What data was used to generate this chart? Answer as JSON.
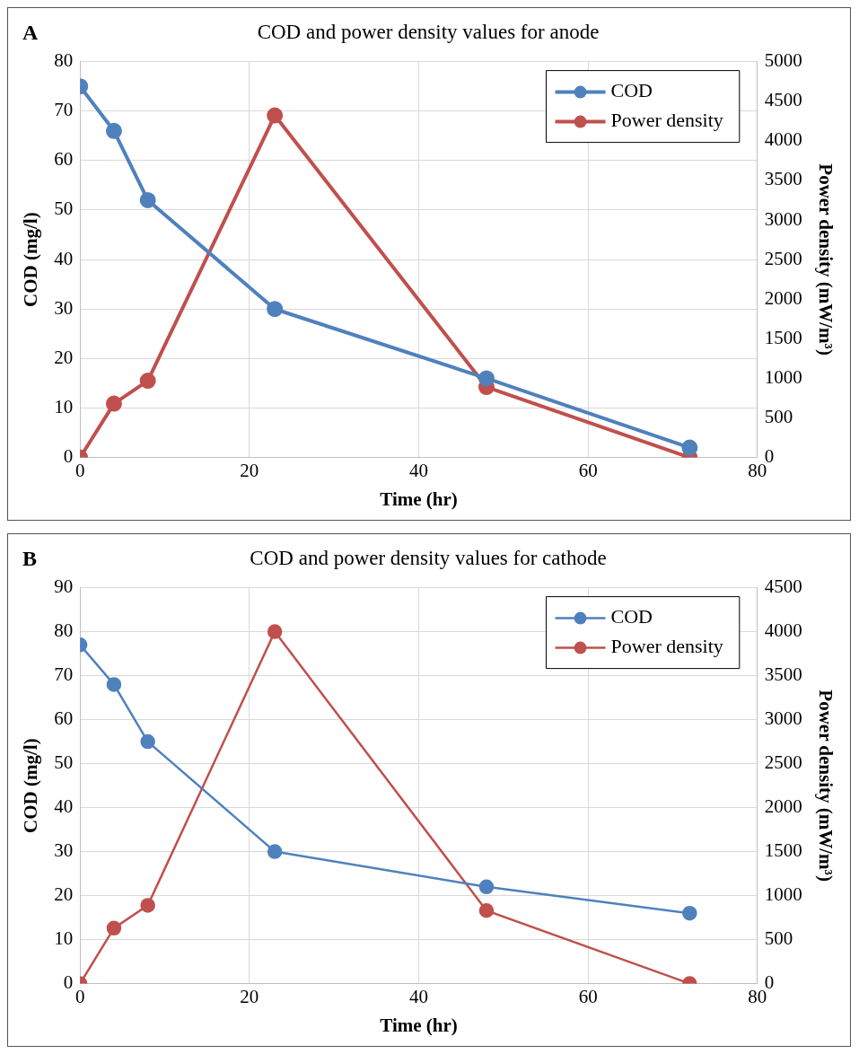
{
  "chart_data": [
    {
      "type": "line",
      "title": "COD and power density values for anode",
      "annotations": [
        "A"
      ],
      "xlabel": "Time (hr)",
      "ylabel": "COD (mg/l)",
      "y2label": "Power density (mW/m³)",
      "x": [
        0,
        4,
        8,
        23,
        48,
        72
      ],
      "xlim": [
        0,
        80
      ],
      "xticks": [
        0,
        20,
        40,
        60,
        80
      ],
      "ylim": [
        0,
        80
      ],
      "yticks": [
        0,
        10,
        20,
        30,
        40,
        50,
        60,
        70,
        80
      ],
      "y2lim": [
        0,
        5000
      ],
      "y2ticks": [
        0,
        500,
        1000,
        1500,
        2000,
        2500,
        3000,
        3500,
        4000,
        4500,
        5000
      ],
      "grid": true,
      "legend": "top right",
      "marker": "circle",
      "series": [
        {
          "name": "COD",
          "color": "#4f81bd",
          "values": [
            75,
            66,
            52,
            30,
            16,
            2
          ]
        },
        {
          "name": "Power density",
          "color": "#c0504d",
          "axis": "y2",
          "values": [
            0,
            680,
            970,
            4320,
            890,
            0
          ]
        }
      ]
    },
    {
      "type": "line",
      "title": "COD and power density values for cathode",
      "annotations": [
        "B"
      ],
      "xlabel": "Time (hr)",
      "ylabel": "COD (mg/l)",
      "y2label": "Power density (mW/m³)",
      "x": [
        0,
        4,
        8,
        23,
        48,
        72
      ],
      "xlim": [
        0,
        80
      ],
      "xticks": [
        0,
        20,
        40,
        60,
        80
      ],
      "ylim": [
        0,
        90
      ],
      "yticks": [
        0,
        10,
        20,
        30,
        40,
        50,
        60,
        70,
        80,
        90
      ],
      "y2lim": [
        0,
        4500
      ],
      "y2ticks": [
        0,
        500,
        1000,
        1500,
        2000,
        2500,
        3000,
        3500,
        4000,
        4500
      ],
      "grid": true,
      "legend": "top right",
      "marker": "circle",
      "series": [
        {
          "name": "COD",
          "color": "#4f81bd",
          "values": [
            77,
            68,
            55,
            30,
            22,
            16
          ]
        },
        {
          "name": "Power density",
          "color": "#c0504d",
          "axis": "y2",
          "values": [
            0,
            630,
            890,
            4000,
            830,
            0
          ]
        }
      ]
    }
  ]
}
